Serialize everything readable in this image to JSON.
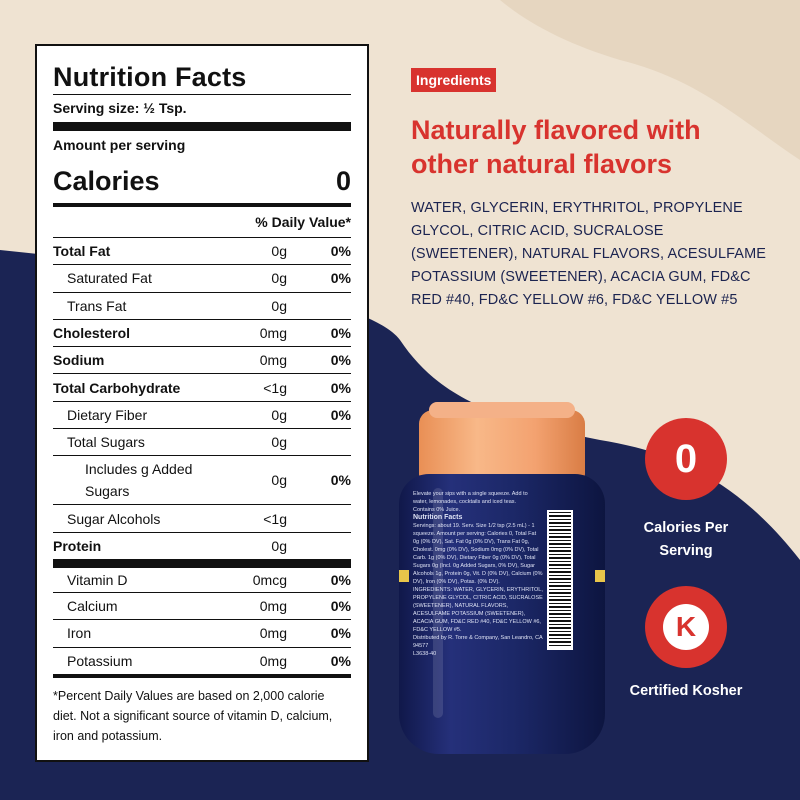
{
  "colors": {
    "navy": "#1b2454",
    "cream": "#efe3d2",
    "red": "#d8332e",
    "bottle_cap": "#f3a270"
  },
  "nutrition": {
    "title": "Nutrition Facts",
    "serving_size": "Serving size: ½ Tsp.",
    "amount_per_serving": "Amount per serving",
    "calories_label": "Calories",
    "calories_value": "0",
    "dv_header": "% Daily Value*",
    "rows": [
      {
        "name": "Total Fat",
        "amount": "0g",
        "dv": "0%"
      },
      {
        "name": "Saturated Fat",
        "amount": "0g",
        "dv": "0%"
      },
      {
        "name": "Trans Fat",
        "amount": "0g",
        "dv": ""
      },
      {
        "name": "Cholesterol",
        "amount": "0mg",
        "dv": "0%"
      },
      {
        "name": "Sodium",
        "amount": "0mg",
        "dv": "0%"
      },
      {
        "name": "Total Carbohydrate",
        "amount": "<1g",
        "dv": "0%"
      },
      {
        "name": "Dietary Fiber",
        "amount": "0g",
        "dv": "0%"
      },
      {
        "name": "Total Sugars",
        "amount": "0g",
        "dv": ""
      },
      {
        "name": "Includes g Added Sugars",
        "amount": "0g",
        "dv": "0%"
      },
      {
        "name": "Sugar Alcohols",
        "amount": "<1g",
        "dv": ""
      },
      {
        "name": "Protein",
        "amount": "0g",
        "dv": ""
      },
      {
        "name": "Vitamin D",
        "amount": "0mcg",
        "dv": "0%"
      },
      {
        "name": "Calcium",
        "amount": "0mg",
        "dv": "0%"
      },
      {
        "name": "Iron",
        "amount": "0mg",
        "dv": "0%"
      },
      {
        "name": "Potassium",
        "amount": "0mg",
        "dv": "0%"
      }
    ],
    "footnote": "*Percent Daily Values are based on 2,000 calorie diet. Not a significant source of vitamin D, calcium, iron and potassium."
  },
  "ingredients": {
    "tag": "Ingredients",
    "headline": "Naturally flavored with other natural flavors",
    "list": "WATER, GLYCERIN, ERYTHRITOL, PROPYLENE GLYCOL, CITRIC ACID, SUCRALOSE (SWEETENER), NATURAL FLAVORS, ACESULFAME POTASSIUM (SWEETENER), ACACIA GUM, FD&C RED #40, FD&C YELLOW #6, FD&C YELLOW #5"
  },
  "badges": {
    "calories_icon_text": "0",
    "calories_caption": "Calories Per Serving",
    "kosher_icon": "kosher-k-icon",
    "kosher_letter": "K",
    "kosher_caption": "Certified Kosher"
  },
  "bottle": {
    "tagline": "Elevate your sips with a single squeeze. Add to water, lemonades, cocktails and iced teas.",
    "juice": "Contains 0% Juice.",
    "nf_title": "Nutrition Facts",
    "nf_text": "Servings: about 19. Serv. Size 1/2 tsp (2.5 mL) - 1 squeeze. Amount per serving: Calories 0, Total Fat 0g (0% DV), Sat. Fat 0g (0% DV), Trans Fat 0g, Cholest. 0mg (0% DV), Sodium 0mg (0% DV), Total Carb. 1g (0% DV), Dietary Fiber 0g (0% DV), Total Sugars 0g (Incl. 0g Added Sugars, 0% DV), Sugar Alcohols 1g, Protein 0g, Vit. D (0% DV), Calcium (0% DV), Iron (0% DV), Potas. (0% DV).",
    "ing_text": "INGREDIENTS: WATER, GLYCERIN, ERYTHRITOL, PROPYLENE GLYCOL, CITRIC ACID, SUCRALOSE (SWEETENER), NATURAL FLAVORS, ACESULFAME POTASSIUM (SWEETENER), ACACIA GUM, FD&C RED #40, FD&C YELLOW #6, FD&C YELLOW #5.",
    "distributor": "Distributed by R. Torre & Company, San Leandro, CA 94577",
    "lot": "L3638-40"
  }
}
